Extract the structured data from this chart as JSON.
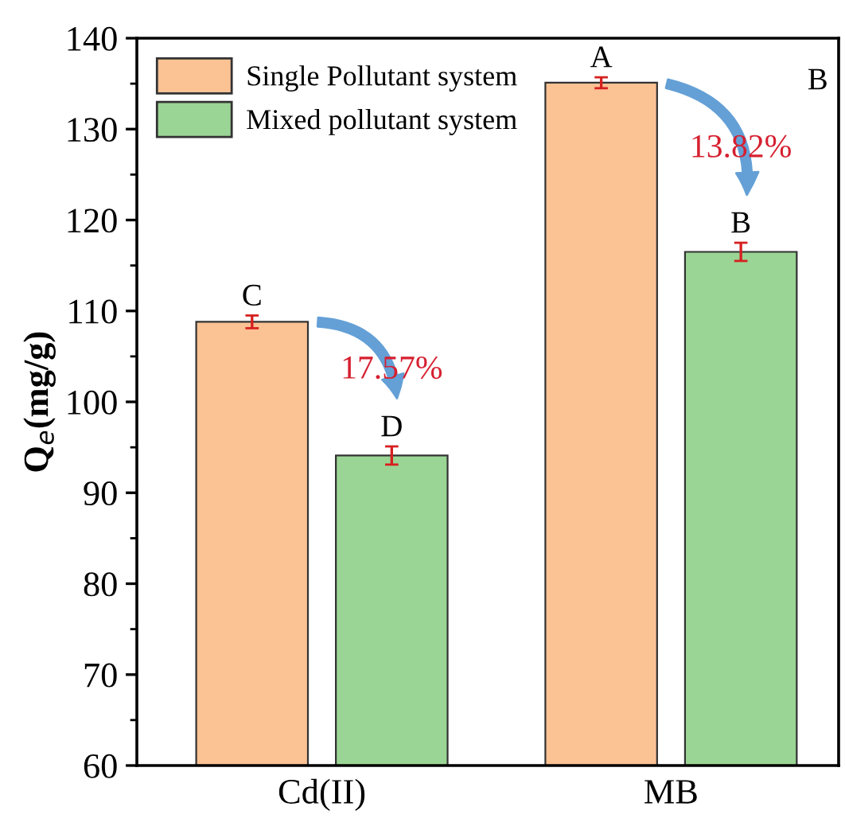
{
  "chart_data": {
    "type": "bar",
    "ylabel": "Q$_{e}$(mg/g)",
    "categories": [
      "Cd(II)",
      "MB"
    ],
    "series": [
      {
        "name": "Single Pollutant system",
        "color": "#fbc294",
        "values": [
          108.8,
          135.1
        ],
        "errors": [
          0.7,
          0.6
        ],
        "value_labels": [
          "C",
          "A"
        ]
      },
      {
        "name": "Mixed pollutant system",
        "color": "#9bd595",
        "values": [
          94.1,
          116.5
        ],
        "errors": [
          1.0,
          1.0
        ],
        "value_labels": [
          "D",
          "B"
        ]
      }
    ],
    "annotations": [
      "17.57%",
      "13.82%",
      "B"
    ],
    "ylim": [
      60,
      140
    ],
    "yticks": [
      60,
      {
        "value": 65,
        "label": null
      },
      70,
      {
        "value": 75,
        "label": null
      },
      80,
      {
        "value": 85,
        "label": null
      },
      90,
      {
        "value": 95,
        "label": null
      },
      100,
      {
        "value": 105,
        "label": null
      },
      110,
      {
        "value": 115,
        "label": null
      },
      120,
      {
        "value": 125,
        "label": null
      },
      130,
      {
        "value": 135,
        "label": null
      },
      140
    ],
    "legend": "top left",
    "grid": false
  }
}
